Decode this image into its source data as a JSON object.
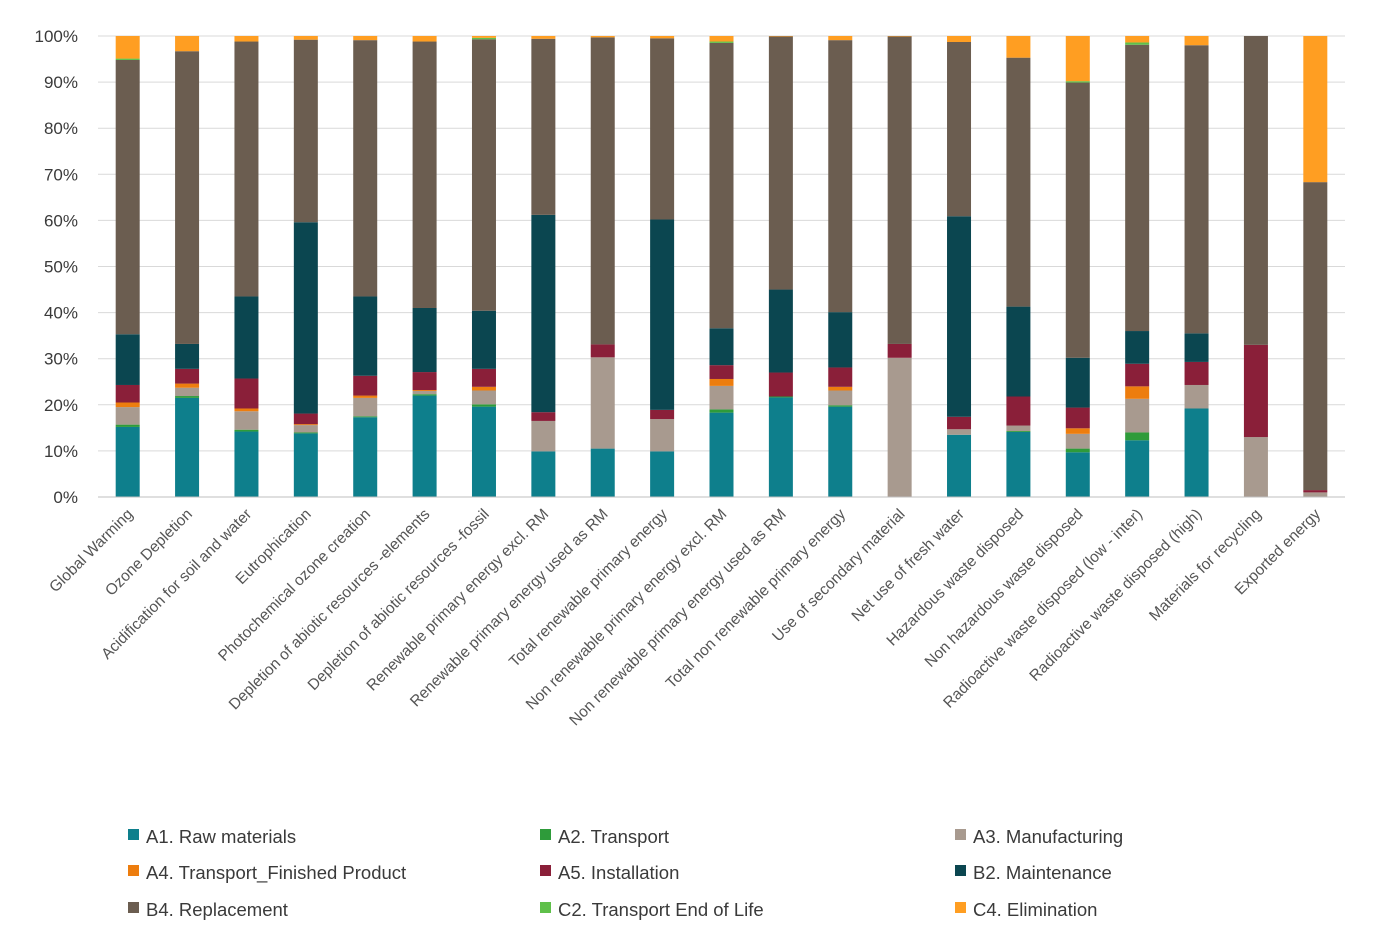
{
  "chart_data": {
    "type": "bar",
    "stacked": true,
    "normalized": true,
    "ylim": [
      0,
      100
    ],
    "yticks": [
      "0%",
      "10%",
      "20%",
      "30%",
      "40%",
      "50%",
      "60%",
      "70%",
      "80%",
      "90%",
      "100%"
    ],
    "grid": true,
    "legend_position": "bottom",
    "categories": [
      "Global Warming",
      "Ozone Depletion",
      "Acidification for soil and water",
      "Eutrophication",
      "Photochemical ozone creation",
      "Depletion of abiotic resources -elements",
      "Depletion of abiotic resources -fossil",
      "Renewable primary energy excl. RM",
      "Renewable primary energy used as RM",
      "Total renewable primary energy",
      "Non renewable primary energy excl. RM",
      "Non renewable primary energy used as RM",
      "Total non renewable primary energy",
      "Use of secondary material",
      "Net use of fresh water",
      "Hazardous waste disposed",
      "Non hazardous waste disposed",
      "Radioactive waste disposed (low - inter)",
      "Radioactive waste disposed (high)",
      "Materials for recycling",
      "Exported energy"
    ],
    "series": [
      {
        "name": "A1. Raw materials",
        "color": "#0e7f8c",
        "values": [
          15.2,
          21.5,
          14.2,
          13.8,
          17.3,
          22.0,
          19.6,
          9.9,
          10.5,
          9.9,
          18.3,
          21.6,
          19.6,
          0.0,
          13.5,
          14.1,
          9.7,
          12.3,
          19.2,
          0.0,
          0.0
        ]
      },
      {
        "name": "A2. Transport",
        "color": "#2e9b3a",
        "values": [
          0.5,
          0.4,
          0.4,
          0.2,
          0.2,
          0.3,
          0.5,
          0.0,
          0.0,
          0.0,
          0.7,
          0.2,
          0.3,
          0.0,
          0.0,
          0.2,
          0.8,
          1.7,
          0.0,
          0.0,
          0.0
        ]
      },
      {
        "name": "A3. Manufacturing",
        "color": "#a89a8f",
        "values": [
          3.8,
          1.8,
          4.0,
          1.6,
          4.0,
          0.7,
          3.0,
          6.6,
          19.8,
          7.0,
          5.1,
          0.0,
          3.2,
          30.2,
          1.2,
          1.2,
          3.2,
          7.3,
          5.1,
          13.0,
          1.0
        ]
      },
      {
        "name": "A4. Transport_Finished Product",
        "color": "#ed7d0e",
        "values": [
          1.0,
          0.9,
          0.6,
          0.2,
          0.5,
          0.2,
          0.8,
          0.0,
          0.0,
          0.0,
          1.5,
          0.0,
          0.8,
          0.0,
          0.0,
          0.0,
          1.2,
          2.7,
          0.0,
          0.0,
          0.0
        ]
      },
      {
        "name": "A5. Installation",
        "color": "#8a1f39",
        "values": [
          3.8,
          3.2,
          6.5,
          2.3,
          4.3,
          3.9,
          3.9,
          1.9,
          2.8,
          2.0,
          3.0,
          5.2,
          4.2,
          3.0,
          2.7,
          6.3,
          4.5,
          4.9,
          5.0,
          20.0,
          0.5
        ]
      },
      {
        "name": "B2. Maintenance",
        "color": "#0b4650",
        "values": [
          11.0,
          5.4,
          17.8,
          41.5,
          17.2,
          13.9,
          12.6,
          42.8,
          0.0,
          41.3,
          8.0,
          18.0,
          12.0,
          0.0,
          43.5,
          19.5,
          10.8,
          7.1,
          6.2,
          0.0,
          0.0
        ]
      },
      {
        "name": "B4. Replacement",
        "color": "#6b5d50",
        "values": [
          59.5,
          63.5,
          55.3,
          39.6,
          55.6,
          57.8,
          58.9,
          38.2,
          66.6,
          39.3,
          61.9,
          54.9,
          59.0,
          66.7,
          37.8,
          54.0,
          59.7,
          62.1,
          62.5,
          67.0,
          66.8
        ]
      },
      {
        "name": "C2. Transport End of Life",
        "color": "#5fc04a",
        "values": [
          0.3,
          0.0,
          0.0,
          0.0,
          0.0,
          0.0,
          0.3,
          0.0,
          0.0,
          0.0,
          0.3,
          0.0,
          0.0,
          0.0,
          0.0,
          0.0,
          0.3,
          0.5,
          0.0,
          0.0,
          0.0
        ]
      },
      {
        "name": "C4. Elimination",
        "color": "#ff9e22",
        "values": [
          4.9,
          3.3,
          1.2,
          0.8,
          0.9,
          1.2,
          0.4,
          0.6,
          0.3,
          0.5,
          1.2,
          0.1,
          0.9,
          0.1,
          1.3,
          4.7,
          9.8,
          1.4,
          2.0,
          0.0,
          31.7
        ]
      }
    ]
  }
}
